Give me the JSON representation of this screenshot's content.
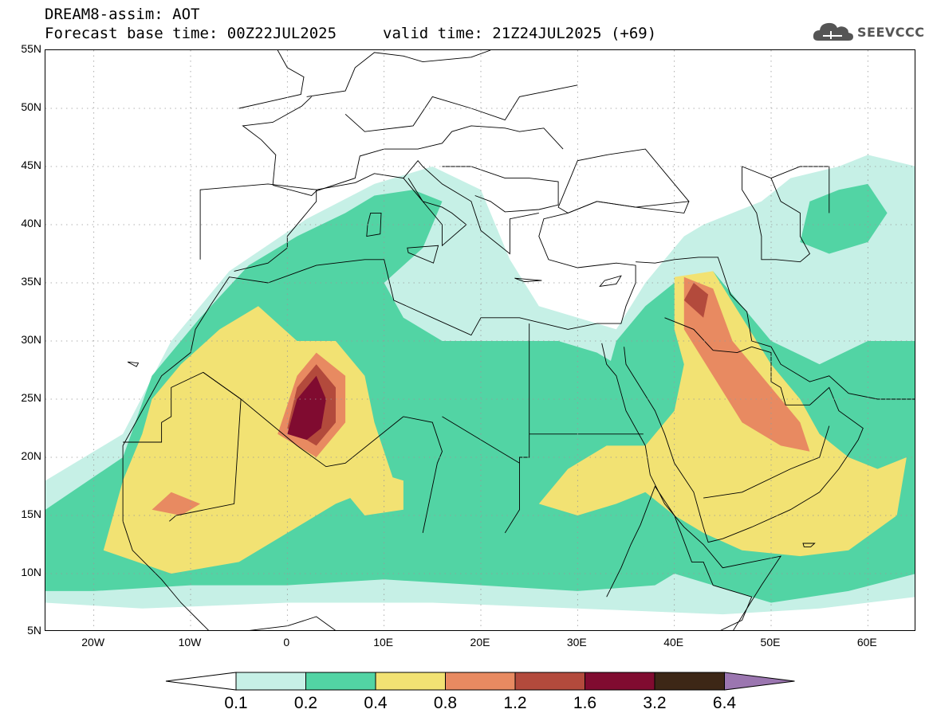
{
  "header": {
    "title": "DREAM8-assim: AOT",
    "base_time": "Forecast base time: 00Z22JUL2025",
    "valid_time": "valid time: 21Z24JUL2025 (+69)"
  },
  "logo": {
    "text": "SEEVCCC",
    "icon": "cloud-icon"
  },
  "map": {
    "lat_labels": [
      "55N",
      "50N",
      "45N",
      "40N",
      "35N",
      "30N",
      "25N",
      "20N",
      "15N",
      "10N",
      "5N"
    ],
    "lon_labels": [
      "20W",
      "10W",
      "0",
      "10E",
      "20E",
      "30E",
      "40E",
      "50E",
      "60E"
    ],
    "lon_range": [
      -25,
      65
    ],
    "lat_range": [
      5,
      55
    ],
    "grid": true
  },
  "legend": {
    "boundaries": [
      "0.1",
      "0.2",
      "0.4",
      "0.8",
      "1.2",
      "1.6",
      "3.2",
      "6.4"
    ],
    "colors": [
      "#c6f0e6",
      "#52d4a4",
      "#f2e273",
      "#e88a61",
      "#b34a3c",
      "#800b30",
      "#3d2716",
      "#9b76b0"
    ],
    "under_color": "#ffffff"
  }
}
